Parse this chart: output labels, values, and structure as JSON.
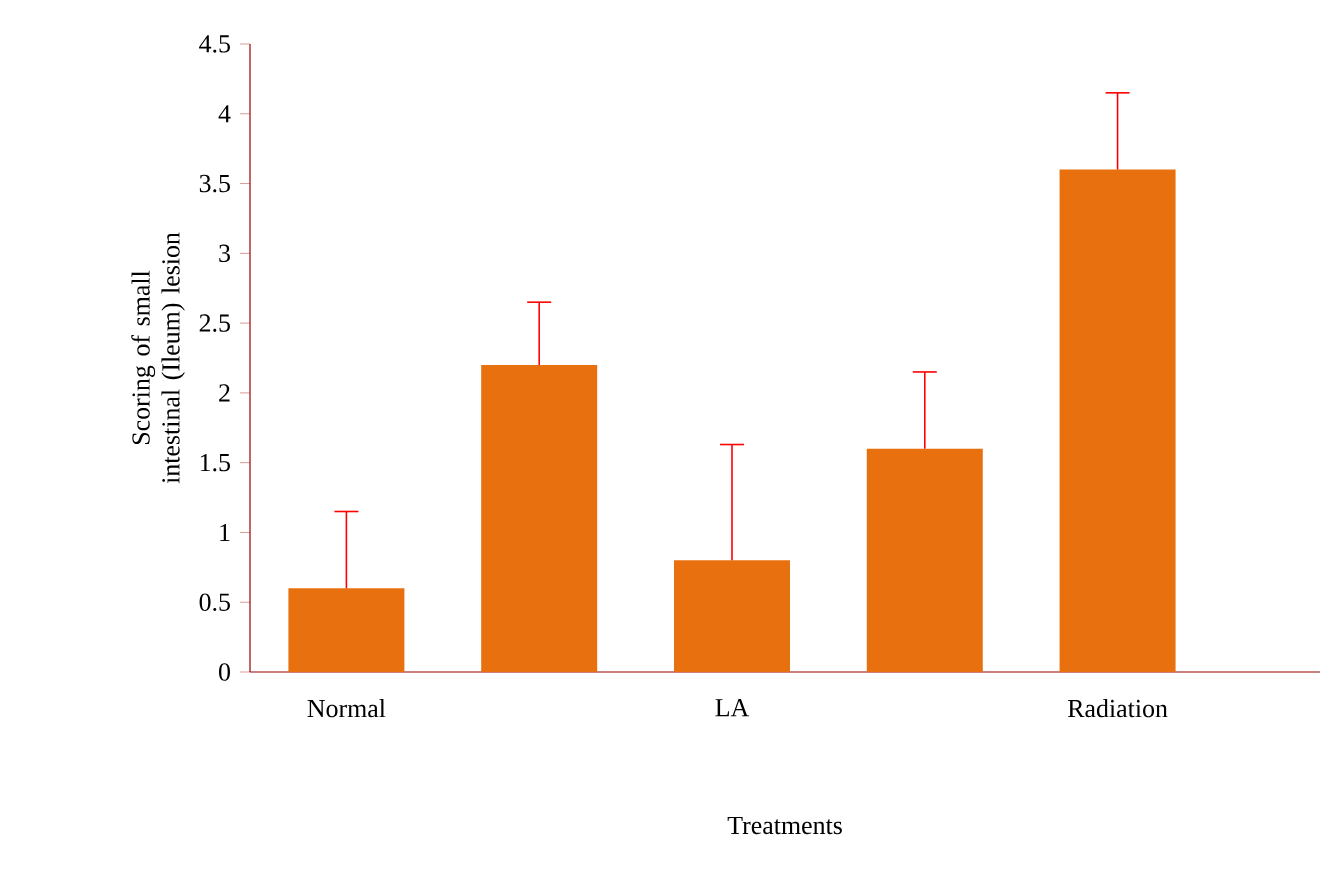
{
  "chart_data": {
    "type": "bar",
    "xlabel": "Treatments",
    "ylabel": "Scoring of small intestinal (Ileum) lesion",
    "categories": [
      "Normal",
      null,
      "LA",
      null,
      "Radiation"
    ],
    "values": [
      0.6,
      2.2,
      0.8,
      1.6,
      3.6
    ],
    "errors": [
      [
        0.6,
        1.15
      ],
      [
        2.2,
        2.65
      ],
      [
        0.8,
        1.63
      ],
      [
        1.6,
        2.15
      ],
      [
        3.6,
        4.15
      ]
    ],
    "color": "#e8700f",
    "ylim": [
      0,
      4.5
    ],
    "yticks": [
      0,
      0.5,
      1,
      1.5,
      2,
      2.5,
      3,
      3.5,
      4,
      4.5
    ],
    "grid": false
  }
}
